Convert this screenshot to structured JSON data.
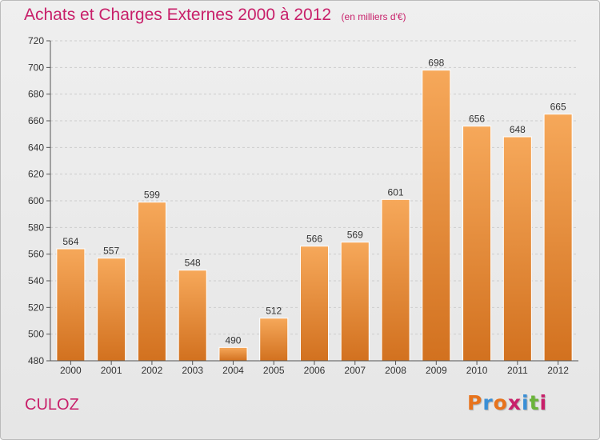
{
  "header": {
    "title": "Achats et Charges Externes 2000 à 2012",
    "unit": "(en milliers d'€)"
  },
  "footer": {
    "commune": "CULOZ",
    "logo_text": "Proxiti"
  },
  "colors": {
    "title": "#c8206a",
    "bar_light": "#f6a85a",
    "bar_dark": "#d2711f",
    "axis": "#555555",
    "grid": "#cccccc",
    "logo_letters": [
      "#e8731c",
      "#3a8fd6",
      "#e8731c",
      "#c8206a",
      "#3a8fd6",
      "#6bb43a",
      "#c8206a"
    ]
  },
  "chart_data": {
    "type": "bar",
    "categories": [
      "2000",
      "2001",
      "2002",
      "2003",
      "2004",
      "2005",
      "2006",
      "2007",
      "2008",
      "2009",
      "2010",
      "2011",
      "2012"
    ],
    "values": [
      564,
      557,
      599,
      548,
      490,
      512,
      566,
      569,
      601,
      698,
      656,
      648,
      665
    ],
    "ylim": [
      480,
      720
    ],
    "yticks": [
      480,
      500,
      520,
      540,
      560,
      580,
      600,
      620,
      640,
      660,
      680,
      700,
      720
    ],
    "grid": true,
    "data_labels": true
  }
}
